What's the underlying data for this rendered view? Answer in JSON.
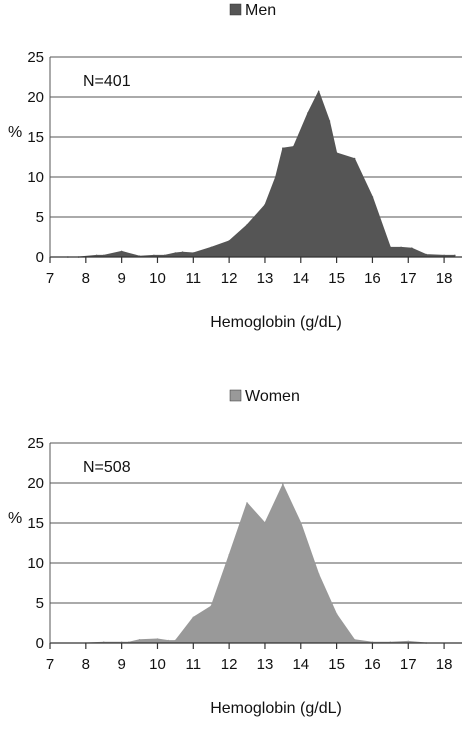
{
  "chart_data": [
    {
      "type": "area",
      "legend": {
        "label": "Men",
        "color": "#555555",
        "placement": "top-center"
      },
      "annotation": "N=401",
      "ylabel": "%",
      "xlabel": "Hemoglobin (g/dL)",
      "ylim": [
        0,
        25
      ],
      "xlim": [
        7,
        18.5
      ],
      "yticks": [
        "0",
        "5",
        "10",
        "15",
        "20",
        "25"
      ],
      "xticks": [
        "7",
        "8",
        "9",
        "10",
        "11",
        "12",
        "13",
        "14",
        "15",
        "16",
        "17",
        "18"
      ],
      "grid": true,
      "series": [
        {
          "fill": "#555555",
          "x": [
            7.5,
            7.8,
            8.3,
            8.5,
            9.0,
            9.5,
            9.9,
            10.2,
            10.5,
            10.7,
            11.0,
            11.5,
            12.0,
            12.5,
            13.0,
            13.3,
            13.5,
            13.8,
            14.2,
            14.5,
            14.8,
            15.0,
            15.5,
            16.0,
            16.5,
            16.8,
            17.1,
            17.5,
            18.0,
            18.3
          ],
          "y": [
            0,
            0,
            0.2,
            0.2,
            0.7,
            0.1,
            0.2,
            0.2,
            0.5,
            0.6,
            0.5,
            1.2,
            2.0,
            4.0,
            6.5,
            10.0,
            13.6,
            13.8,
            18.0,
            20.7,
            17.0,
            13.0,
            12.3,
            7.5,
            1.2,
            1.2,
            1.1,
            0.3,
            0.2,
            0.2
          ]
        }
      ]
    },
    {
      "type": "area",
      "legend": {
        "label": "Women",
        "color": "#999999",
        "placement": "top-center"
      },
      "annotation": "N=508",
      "ylabel": "%",
      "xlabel": "Hemoglobin (g/dL)",
      "ylim": [
        0,
        25
      ],
      "xlim": [
        7,
        18.5
      ],
      "yticks": [
        "0",
        "5",
        "10",
        "15",
        "20",
        "25"
      ],
      "xticks": [
        "7",
        "8",
        "9",
        "10",
        "11",
        "12",
        "13",
        "14",
        "15",
        "16",
        "17",
        "18"
      ],
      "grid": true,
      "series": [
        {
          "fill": "#999999",
          "x": [
            8.0,
            8.5,
            9.0,
            9.2,
            9.5,
            10.0,
            10.3,
            10.5,
            11.0,
            11.5,
            12.0,
            12.5,
            13.0,
            13.5,
            14.0,
            14.5,
            15.0,
            15.5,
            16.0,
            16.5,
            17.0,
            17.5
          ],
          "y": [
            0,
            0.1,
            0.1,
            0.1,
            0.4,
            0.5,
            0.3,
            0.3,
            3.2,
            4.6,
            11.0,
            17.5,
            15.0,
            19.8,
            15.0,
            8.6,
            3.6,
            0.4,
            0.1,
            0.1,
            0.2,
            0
          ]
        }
      ]
    }
  ]
}
